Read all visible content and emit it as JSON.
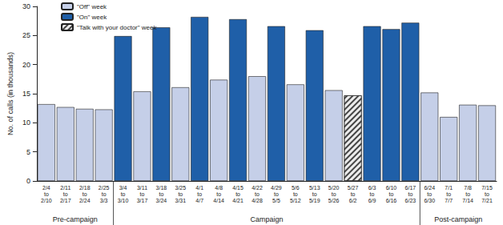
{
  "chart_data": {
    "type": "bar",
    "y_label": "No. of calls (in thousands)",
    "categories": [
      "2/4\nto\n2/10",
      "2/11\nto\n2/17",
      "2/18\nto\n2/24",
      "2/25\nto\n3/3",
      "3/4\nto\n3/10",
      "3/11\nto\n3/17",
      "3/18\nto\n3/24",
      "3/25\nto\n3/31",
      "4/1\nto\n4/7",
      "4/8\nto\n4/14",
      "4/15\nto\n4/21",
      "4/22\nto\n4/28",
      "4/29\nto\n5/5",
      "5/6\nto\n5/12",
      "5/13\nto\n5/19",
      "5/20\nto\n5/26",
      "5/27\nto\n6/2",
      "6/3\nto\n6/9",
      "6/10\nto\n6/16",
      "6/17\nto\n6/23",
      "6/24\nto\n6/30",
      "7/1\nto\n7/7",
      "7/8\nto\n7/14",
      "7/15\nto\n7/21"
    ],
    "series": [
      {
        "name": "\"Off\" week",
        "color": "#c5cfe8",
        "values": [
          13.2,
          12.7,
          12.4,
          12.3,
          null,
          15.4,
          null,
          16.1,
          null,
          17.4,
          null,
          18.0,
          null,
          16.6,
          null,
          15.6,
          null,
          null,
          null,
          null,
          15.2,
          11.0,
          13.1,
          13.0
        ]
      },
      {
        "name": "\"On\" week",
        "color": "#1f5fa8",
        "values": [
          null,
          null,
          null,
          null,
          24.9,
          null,
          26.4,
          null,
          28.2,
          null,
          27.8,
          null,
          26.6,
          null,
          25.9,
          null,
          null,
          26.6,
          26.1,
          27.2,
          null,
          null,
          null,
          null
        ]
      },
      {
        "name": "\"Talk with your doctor\" week",
        "color": "#ececec",
        "marker": "hatch",
        "values": [
          null,
          null,
          null,
          null,
          null,
          null,
          null,
          null,
          null,
          null,
          null,
          null,
          null,
          null,
          null,
          null,
          14.7,
          null,
          null,
          null,
          null,
          null,
          null,
          null
        ]
      }
    ],
    "groups": [
      {
        "label": "Pre-campaign",
        "first": "2/4\nto\n2/10",
        "last": "2/25\nto\n3/3"
      },
      {
        "label": "Campaign",
        "first": "3/4\nto\n3/10",
        "last": "6/17\nto\n6/23"
      },
      {
        "label": "Post-campaign",
        "first": "6/24\nto\n6/30",
        "last": "7/15\nto\n7/21"
      }
    ],
    "ylim": [
      0,
      30
    ],
    "yticks": [
      0,
      5,
      10,
      15,
      20,
      25,
      30
    ],
    "grid": false,
    "legend": "top-left"
  }
}
